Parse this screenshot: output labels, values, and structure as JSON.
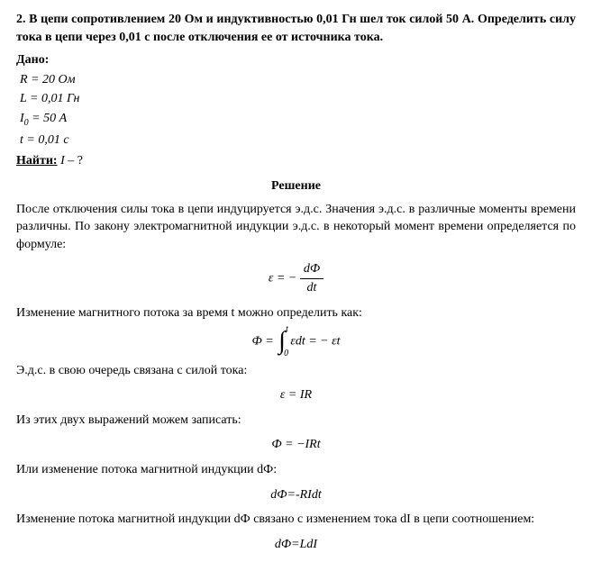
{
  "problem": {
    "number": "2.",
    "statement": "В цепи сопротивлением 20 Ом и индуктивностью 0,01 Гн шел ток силой 50 А. Определить силу тока в цепи через 0,01 с после отключения ее от источника тока."
  },
  "given": {
    "label": "Дано:",
    "lines": [
      {
        "var": "R",
        "eq": "=",
        "val": "20",
        "unit": "Ом"
      },
      {
        "var": "L",
        "eq": "=",
        "val": "0,01",
        "unit": "Гн"
      },
      {
        "var": "I",
        "sub": "0",
        "eq": "=",
        "val": "50",
        "unit": "А"
      },
      {
        "var": "t",
        "eq": "=",
        "val": "0,01",
        "unit": "с"
      }
    ]
  },
  "find": {
    "label": "Найти:",
    "var": "I",
    "suffix": " – ?"
  },
  "solution": {
    "title": "Решение",
    "para1": "После отключения силы тока в цепи индуцируется э.д.с. Значения э.д.с. в различные моменты времени различны. По закону электромагнитной индукции э.д.с. в некоторый момент времени определяется по формуле:",
    "formula1": {
      "left": "ε = −",
      "num": "dФ",
      "den": "dt"
    },
    "para2": "Изменение магнитного потока за время t можно определить как:",
    "formula2": {
      "left": "Ф =",
      "int_lower": "0",
      "int_upper": "t",
      "integrand": "εdt",
      "right": "= − εt"
    },
    "para3": "Э.д.с. в свою очередь связана с силой тока:",
    "formula3": "ε = IR",
    "para4": "Из этих двух выражений можем записать:",
    "formula4": "Ф = −IRt",
    "para5": "Или изменение потока магнитной индукции dФ:",
    "formula5": "dФ=-RIdt",
    "para6": "Изменение потока магнитной индукции dФ связано с изменением тока dI в цепи соотношением:",
    "formula6": "dФ=LdI"
  },
  "style": {
    "background": "#ffffff",
    "text_color": "#000000",
    "font_family": "Times New Roman",
    "base_fontsize": 14
  }
}
